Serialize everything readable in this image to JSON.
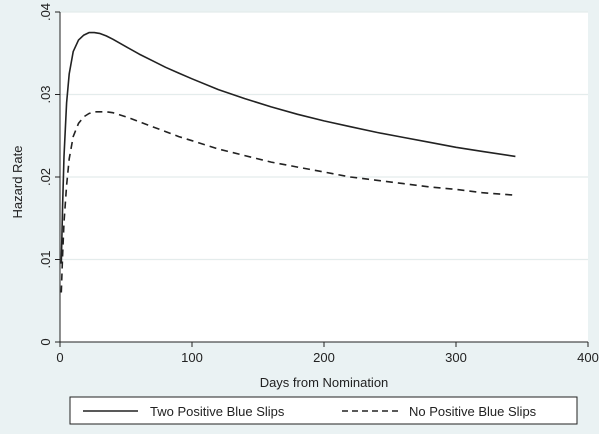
{
  "chart_data": {
    "type": "line",
    "xlabel": "Days from Nomination",
    "ylabel": "Hazard Rate",
    "xlim": [
      0,
      400
    ],
    "ylim": [
      0,
      0.04
    ],
    "x_ticks": [
      {
        "value": 0,
        "label": "0"
      },
      {
        "value": 100,
        "label": "100"
      },
      {
        "value": 200,
        "label": "200"
      },
      {
        "value": 300,
        "label": "300"
      },
      {
        "value": 400,
        "label": "400"
      }
    ],
    "y_ticks": [
      {
        "value": 0,
        "label": "0"
      },
      {
        "value": 0.01,
        "label": ".01"
      },
      {
        "value": 0.02,
        "label": ".02"
      },
      {
        "value": 0.03,
        "label": ".03"
      },
      {
        "value": 0.04,
        "label": ".04"
      }
    ],
    "grid": true,
    "legend_position": "bottom",
    "series": [
      {
        "name": "Two Positive Blue Slips",
        "style": "solid",
        "color": "#222222",
        "x": [
          1,
          2,
          3,
          5,
          7,
          10,
          14,
          18,
          22,
          26,
          30,
          35,
          40,
          50,
          60,
          70,
          80,
          90,
          100,
          120,
          140,
          160,
          180,
          200,
          220,
          240,
          260,
          280,
          300,
          320,
          345
        ],
        "y": [
          0.0095,
          0.0165,
          0.0225,
          0.029,
          0.0325,
          0.0352,
          0.0366,
          0.0372,
          0.0375,
          0.0375,
          0.0374,
          0.0371,
          0.0367,
          0.0358,
          0.0349,
          0.0341,
          0.0333,
          0.0326,
          0.0319,
          0.0306,
          0.0295,
          0.0285,
          0.0276,
          0.0268,
          0.0261,
          0.0254,
          0.0248,
          0.0242,
          0.0236,
          0.0231,
          0.0225
        ]
      },
      {
        "name": "No Positive Blue Slips",
        "style": "dashed",
        "color": "#222222",
        "x": [
          1,
          2,
          3,
          5,
          7,
          10,
          14,
          18,
          22,
          26,
          30,
          35,
          40,
          50,
          60,
          70,
          80,
          90,
          100,
          120,
          140,
          160,
          180,
          200,
          220,
          240,
          260,
          280,
          300,
          320,
          345
        ],
        "y": [
          0.006,
          0.0105,
          0.0145,
          0.019,
          0.0222,
          0.0249,
          0.0265,
          0.0273,
          0.0277,
          0.0279,
          0.0279,
          0.0279,
          0.0278,
          0.0273,
          0.0267,
          0.0261,
          0.0255,
          0.0249,
          0.0244,
          0.0234,
          0.0226,
          0.0218,
          0.0212,
          0.0206,
          0.02,
          0.0196,
          0.0192,
          0.0188,
          0.0185,
          0.0181,
          0.0178
        ]
      }
    ]
  }
}
